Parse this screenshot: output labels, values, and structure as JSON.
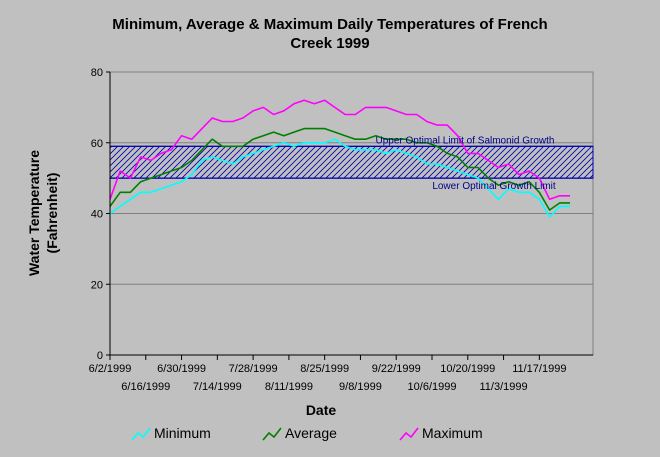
{
  "chart_data": {
    "type": "line",
    "title_line1": "Minimum, Average & Maximum Daily  Temperatures of French",
    "title_line2": "Creek 1999",
    "xlabel": "Date",
    "ylabel_line1": "Water Temperature",
    "ylabel_line2": "(Fahrenheit)",
    "ylim": [
      0,
      80
    ],
    "yticks": [
      0,
      20,
      40,
      60,
      80
    ],
    "xlim": [
      "1999-06-02",
      "1999-12-08"
    ],
    "xticks_top_row": [
      "6/2/1999",
      "6/30/1999",
      "7/28/1999",
      "8/25/1999",
      "9/22/1999",
      "10/20/1999",
      "11/17/1999"
    ],
    "xticks_bottom_row": [
      "6/16/1999",
      "7/14/1999",
      "8/11/1999",
      "9/8/1999",
      "10/6/1999",
      "11/3/1999"
    ],
    "xtick_dates_top": [
      "1999-06-02",
      "1999-06-30",
      "1999-07-28",
      "1999-08-25",
      "1999-09-22",
      "1999-10-20",
      "1999-11-17"
    ],
    "xtick_dates_bottom": [
      "1999-06-16",
      "1999-07-14",
      "1999-08-11",
      "1999-09-08",
      "1999-10-06",
      "1999-11-03"
    ],
    "grid": "horizontal",
    "legend_position": "bottom",
    "bands": {
      "upper_value": 59,
      "lower_value": 50,
      "upper_label": "Upper Optimal Limit of Salmonid Growth",
      "lower_label": "Lower Optimal Growth Limit"
    },
    "series": [
      {
        "name": "Minimum",
        "color": "#00ffff",
        "points": [
          [
            "1999-06-02",
            40
          ],
          [
            "1999-06-06",
            42
          ],
          [
            "1999-06-10",
            44
          ],
          [
            "1999-06-14",
            46
          ],
          [
            "1999-06-18",
            46
          ],
          [
            "1999-06-22",
            47
          ],
          [
            "1999-06-26",
            48
          ],
          [
            "1999-06-30",
            49
          ],
          [
            "1999-07-04",
            51
          ],
          [
            "1999-07-08",
            55
          ],
          [
            "1999-07-12",
            56
          ],
          [
            "1999-07-16",
            55
          ],
          [
            "1999-07-20",
            54
          ],
          [
            "1999-07-24",
            56
          ],
          [
            "1999-07-28",
            57
          ],
          [
            "1999-08-01",
            58
          ],
          [
            "1999-08-05",
            59
          ],
          [
            "1999-08-09",
            60
          ],
          [
            "1999-08-13",
            59
          ],
          [
            "1999-08-17",
            60
          ],
          [
            "1999-08-21",
            60
          ],
          [
            "1999-08-25",
            60
          ],
          [
            "1999-08-29",
            61
          ],
          [
            "1999-09-02",
            59
          ],
          [
            "1999-09-06",
            58
          ],
          [
            "1999-09-10",
            58
          ],
          [
            "1999-09-14",
            58
          ],
          [
            "1999-09-18",
            57
          ],
          [
            "1999-09-22",
            58
          ],
          [
            "1999-09-26",
            57
          ],
          [
            "1999-09-30",
            56
          ],
          [
            "1999-10-04",
            54
          ],
          [
            "1999-10-08",
            54
          ],
          [
            "1999-10-12",
            53
          ],
          [
            "1999-10-16",
            52
          ],
          [
            "1999-10-20",
            51
          ],
          [
            "1999-10-24",
            50
          ],
          [
            "1999-10-28",
            47
          ],
          [
            "1999-11-01",
            44
          ],
          [
            "1999-11-05",
            47
          ],
          [
            "1999-11-09",
            46
          ],
          [
            "1999-11-13",
            46
          ],
          [
            "1999-11-17",
            44
          ],
          [
            "1999-11-21",
            39
          ],
          [
            "1999-11-25",
            42
          ],
          [
            "1999-11-29",
            42
          ]
        ]
      },
      {
        "name": "Average",
        "color": "#008000",
        "points": [
          [
            "1999-06-02",
            42
          ],
          [
            "1999-06-06",
            46
          ],
          [
            "1999-06-10",
            46
          ],
          [
            "1999-06-14",
            49
          ],
          [
            "1999-06-18",
            50
          ],
          [
            "1999-06-22",
            51
          ],
          [
            "1999-06-26",
            52
          ],
          [
            "1999-06-30",
            53
          ],
          [
            "1999-07-04",
            55
          ],
          [
            "1999-07-08",
            58
          ],
          [
            "1999-07-12",
            61
          ],
          [
            "1999-07-16",
            59
          ],
          [
            "1999-07-20",
            59
          ],
          [
            "1999-07-24",
            59
          ],
          [
            "1999-07-28",
            61
          ],
          [
            "1999-08-01",
            62
          ],
          [
            "1999-08-05",
            63
          ],
          [
            "1999-08-09",
            62
          ],
          [
            "1999-08-13",
            63
          ],
          [
            "1999-08-17",
            64
          ],
          [
            "1999-08-21",
            64
          ],
          [
            "1999-08-25",
            64
          ],
          [
            "1999-08-29",
            63
          ],
          [
            "1999-09-02",
            62
          ],
          [
            "1999-09-06",
            61
          ],
          [
            "1999-09-10",
            61
          ],
          [
            "1999-09-14",
            62
          ],
          [
            "1999-09-18",
            61
          ],
          [
            "1999-09-22",
            61
          ],
          [
            "1999-09-26",
            61
          ],
          [
            "1999-09-30",
            60
          ],
          [
            "1999-10-04",
            60
          ],
          [
            "1999-10-08",
            59
          ],
          [
            "1999-10-12",
            57
          ],
          [
            "1999-10-16",
            56
          ],
          [
            "1999-10-20",
            53
          ],
          [
            "1999-10-24",
            53
          ],
          [
            "1999-10-28",
            50
          ],
          [
            "1999-11-01",
            48
          ],
          [
            "1999-11-05",
            49
          ],
          [
            "1999-11-09",
            48
          ],
          [
            "1999-11-13",
            49
          ],
          [
            "1999-11-17",
            46
          ],
          [
            "1999-11-21",
            41
          ],
          [
            "1999-11-25",
            43
          ],
          [
            "1999-11-29",
            43
          ]
        ]
      },
      {
        "name": "Maximum",
        "color": "#ff00ff",
        "points": [
          [
            "1999-06-02",
            44
          ],
          [
            "1999-06-06",
            52
          ],
          [
            "1999-06-10",
            50
          ],
          [
            "1999-06-14",
            56
          ],
          [
            "1999-06-18",
            55
          ],
          [
            "1999-06-22",
            57
          ],
          [
            "1999-06-26",
            58
          ],
          [
            "1999-06-30",
            62
          ],
          [
            "1999-07-04",
            61
          ],
          [
            "1999-07-08",
            64
          ],
          [
            "1999-07-12",
            67
          ],
          [
            "1999-07-16",
            66
          ],
          [
            "1999-07-20",
            66
          ],
          [
            "1999-07-24",
            67
          ],
          [
            "1999-07-28",
            69
          ],
          [
            "1999-08-01",
            70
          ],
          [
            "1999-08-05",
            68
          ],
          [
            "1999-08-09",
            69
          ],
          [
            "1999-08-13",
            71
          ],
          [
            "1999-08-17",
            72
          ],
          [
            "1999-08-21",
            71
          ],
          [
            "1999-08-25",
            72
          ],
          [
            "1999-08-29",
            70
          ],
          [
            "1999-09-02",
            68
          ],
          [
            "1999-09-06",
            68
          ],
          [
            "1999-09-10",
            70
          ],
          [
            "1999-09-14",
            70
          ],
          [
            "1999-09-18",
            70
          ],
          [
            "1999-09-22",
            69
          ],
          [
            "1999-09-26",
            68
          ],
          [
            "1999-09-30",
            68
          ],
          [
            "1999-10-04",
            66
          ],
          [
            "1999-10-08",
            65
          ],
          [
            "1999-10-12",
            65
          ],
          [
            "1999-10-16",
            62
          ],
          [
            "1999-10-20",
            57
          ],
          [
            "1999-10-24",
            57
          ],
          [
            "1999-10-28",
            55
          ],
          [
            "1999-11-01",
            53
          ],
          [
            "1999-11-05",
            54
          ],
          [
            "1999-11-09",
            51
          ],
          [
            "1999-11-13",
            52
          ],
          [
            "1999-11-17",
            50
          ],
          [
            "1999-11-21",
            44
          ],
          [
            "1999-11-25",
            45
          ],
          [
            "1999-11-29",
            45
          ]
        ]
      }
    ]
  }
}
